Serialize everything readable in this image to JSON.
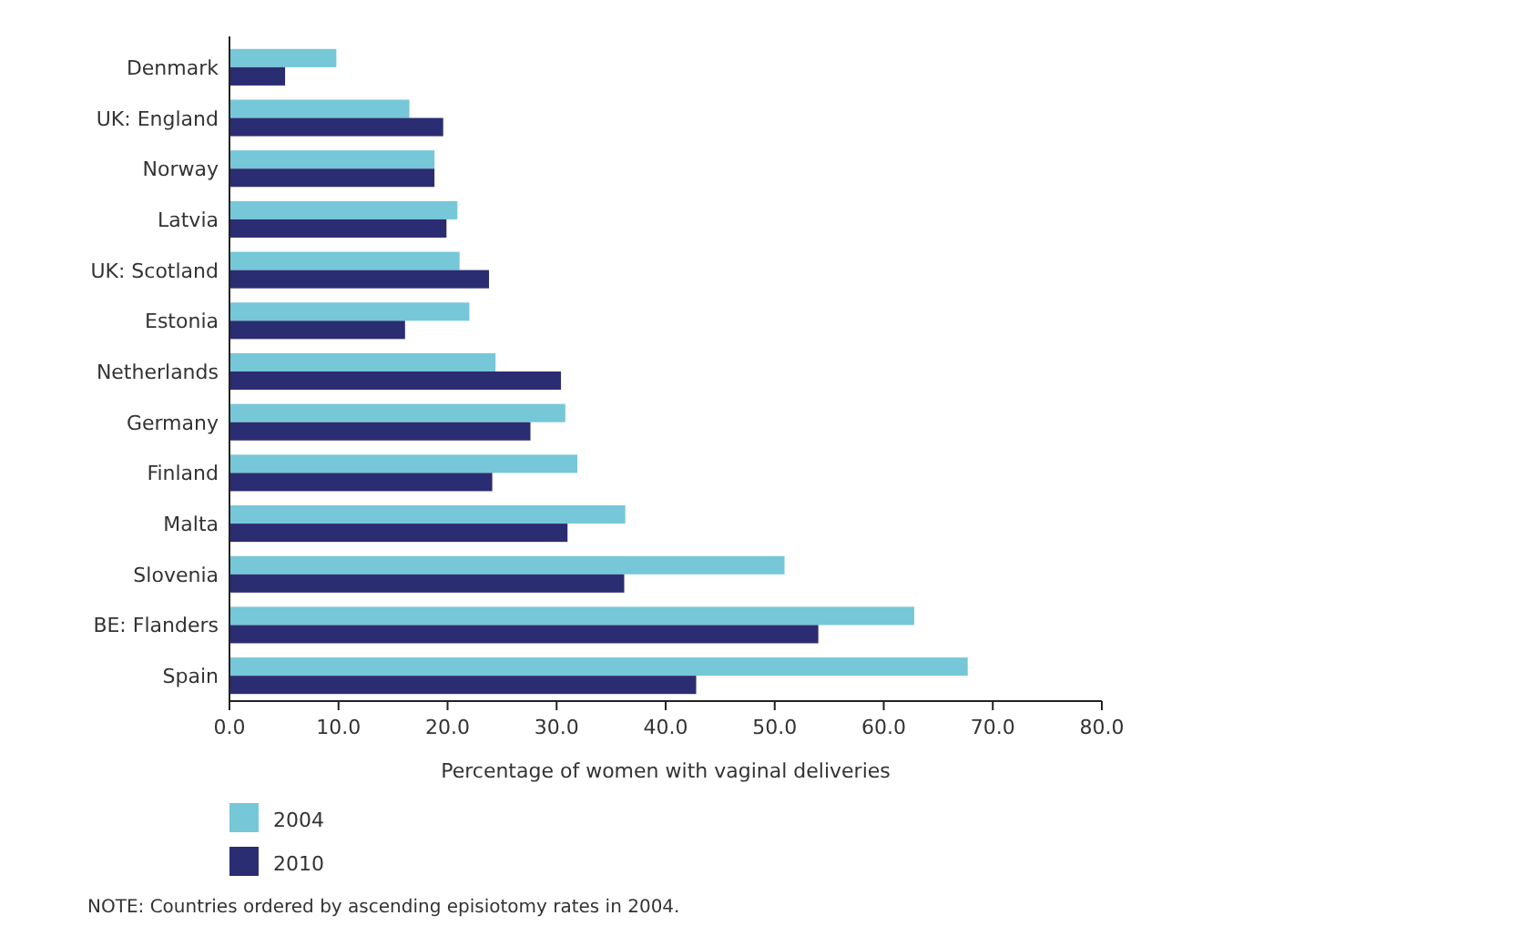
{
  "chart_data": {
    "type": "bar",
    "orientation": "horizontal",
    "xlabel": "Percentage of women with vaginal deliveries",
    "categories": [
      "Denmark",
      "UK: England",
      "Norway",
      "Latvia",
      "UK: Scotland",
      "Estonia",
      "Netherlands",
      "Germany",
      "Finland",
      "Malta",
      "Slovenia",
      "BE: Flanders",
      "Spain"
    ],
    "series": [
      {
        "name": "2004",
        "color": "#76c7d8",
        "values": [
          9.8,
          16.5,
          18.8,
          20.9,
          21.1,
          22.0,
          24.4,
          30.8,
          31.9,
          36.3,
          50.9,
          62.8,
          67.7
        ]
      },
      {
        "name": "2010",
        "color": "#2b2d72",
        "values": [
          5.1,
          19.6,
          18.8,
          19.9,
          23.8,
          16.1,
          30.4,
          27.6,
          24.1,
          31.0,
          36.2,
          54.0,
          42.8
        ]
      }
    ],
    "xlim": [
      0,
      80
    ],
    "xticks": [
      {
        "value": 0,
        "label": "0.0"
      },
      {
        "value": 10,
        "label": "10.0"
      },
      {
        "value": 20,
        "label": "20.0"
      },
      {
        "value": 30,
        "label": "30.0"
      },
      {
        "value": 40,
        "label": "40.0"
      },
      {
        "value": 50,
        "label": "50.0"
      },
      {
        "value": 60,
        "label": "60.0"
      },
      {
        "value": 70,
        "label": "70.0"
      },
      {
        "value": 80,
        "label": "80.0"
      }
    ],
    "legend": "bottom left",
    "annotations": [
      "NOTE: Countries ordered by ascending episiotomy rates in 2004."
    ]
  }
}
